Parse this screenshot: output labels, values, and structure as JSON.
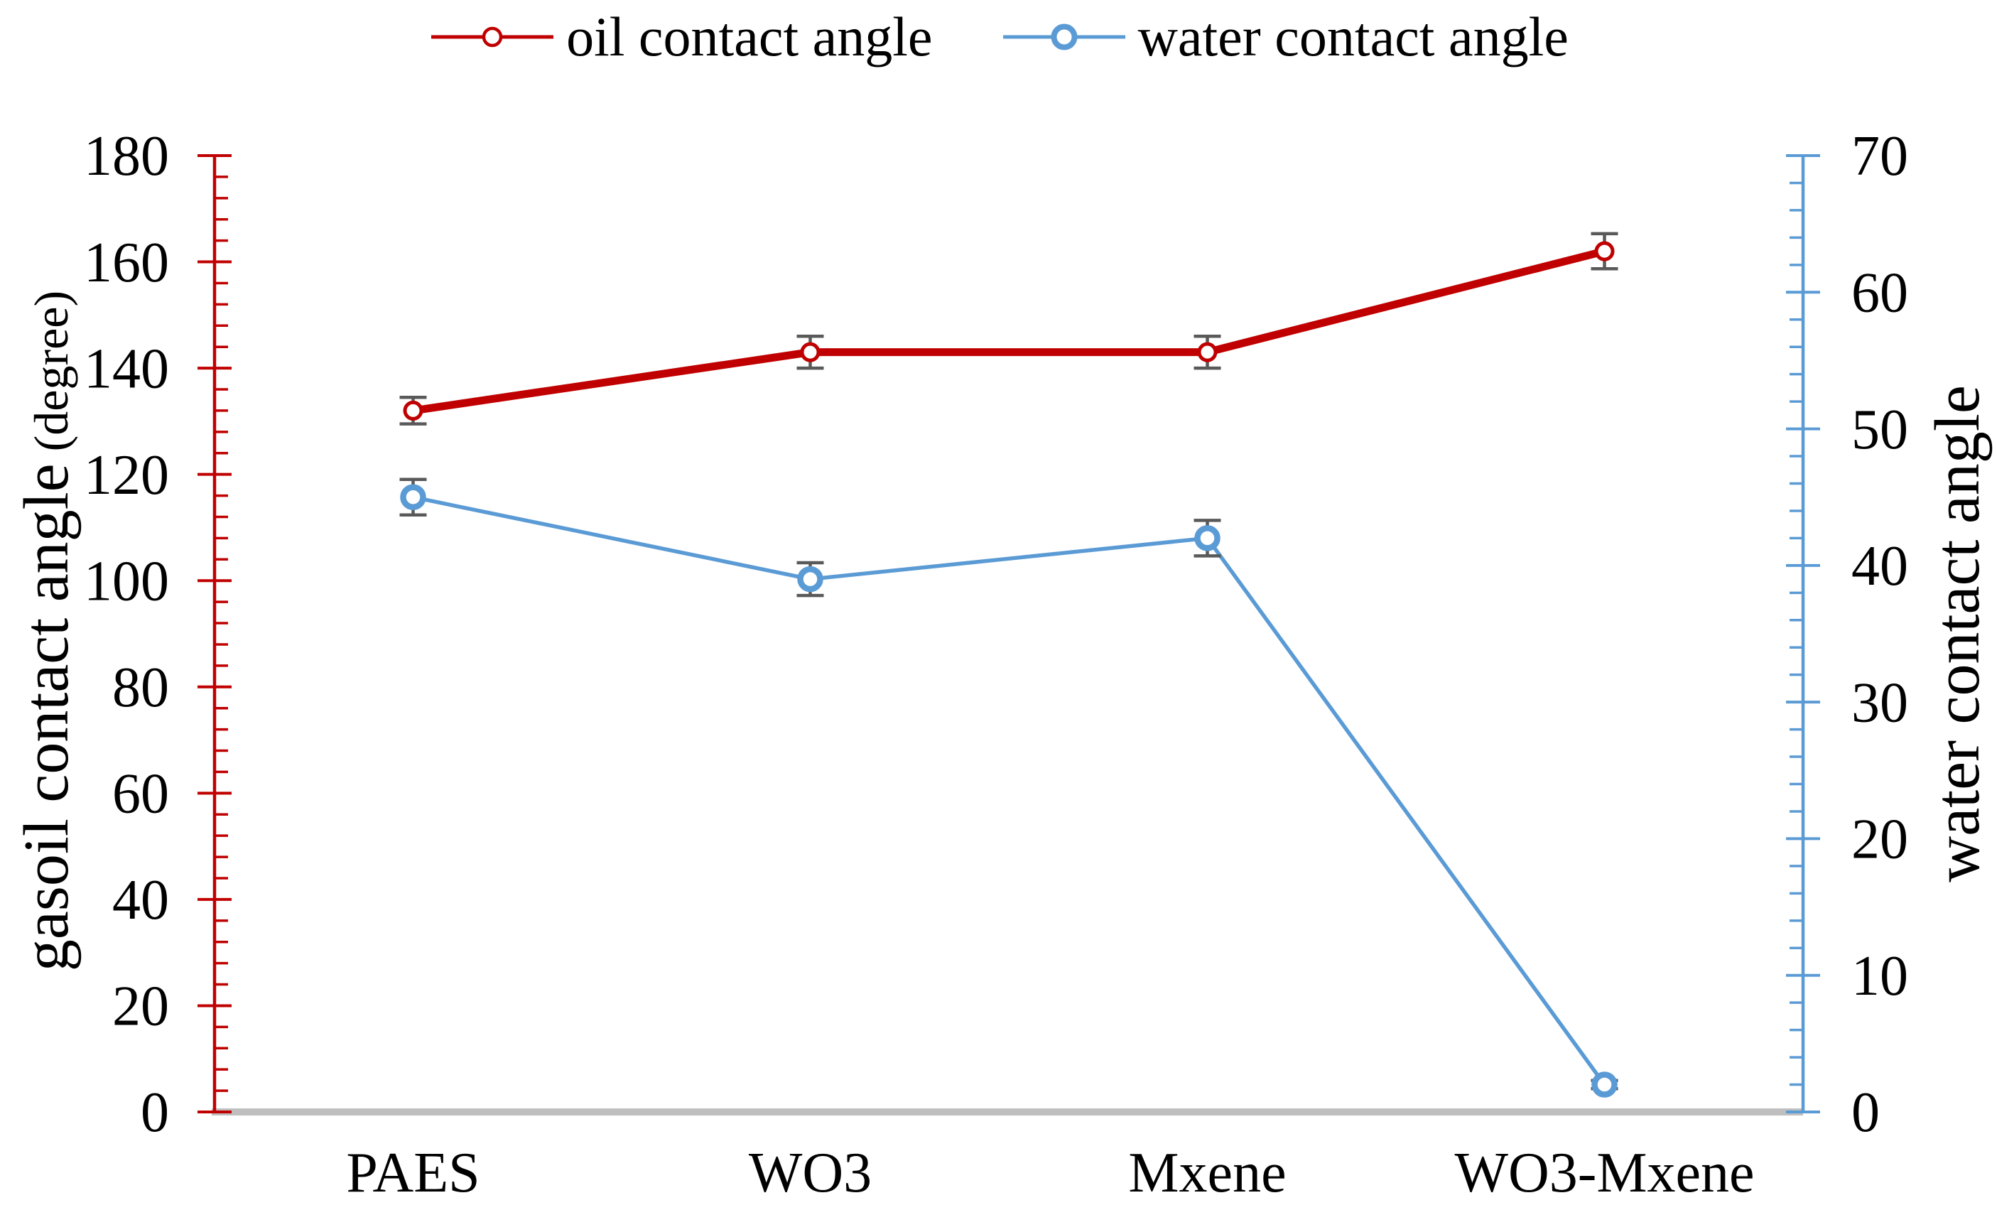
{
  "legend": {
    "position": "top-center",
    "items": [
      {
        "label": "oil contact angle",
        "color": "#c00000",
        "marker": "open-circle-on-line"
      },
      {
        "label": "water contact angle",
        "color": "#5b9bd5",
        "marker": "open-circle-on-line"
      }
    ]
  },
  "chart_data": {
    "type": "line",
    "categories": [
      "PAES",
      "WO3",
      "Mxene",
      "WO3-Mxene"
    ],
    "series": [
      {
        "name": "oil contact angle",
        "axis": "left",
        "color": "#c00000",
        "values": [
          132,
          143,
          143,
          162
        ],
        "error_bars": [
          2.5,
          3,
          3,
          3.3
        ]
      },
      {
        "name": "water contact angle",
        "axis": "right",
        "color": "#5b9bd5",
        "values": [
          45,
          39,
          42,
          2
        ],
        "error_bars": [
          1.3,
          1.2,
          1.3,
          0.3
        ]
      }
    ],
    "left_axis": {
      "title_main": "gasoil contact angle",
      "title_paren": " (degree)",
      "min": 0,
      "max": 180,
      "major_step": 20,
      "minor_step": 4,
      "tick_labels": [
        "0",
        "20",
        "40",
        "60",
        "80",
        "100",
        "120",
        "140",
        "160",
        "180"
      ],
      "color": "#c00000"
    },
    "right_axis": {
      "title": "water contact angle",
      "min": 0,
      "max": 70,
      "major_step": 10,
      "minor_step": 2,
      "tick_labels": [
        "0",
        "10",
        "20",
        "30",
        "40",
        "50",
        "60",
        "70"
      ],
      "color": "#5b9bd5"
    },
    "baseline_color": "#bfbfbf",
    "error_bar_color": "#595959",
    "text_color": "#000000",
    "background": "#ffffff",
    "grid": false,
    "legend_position": "top"
  }
}
